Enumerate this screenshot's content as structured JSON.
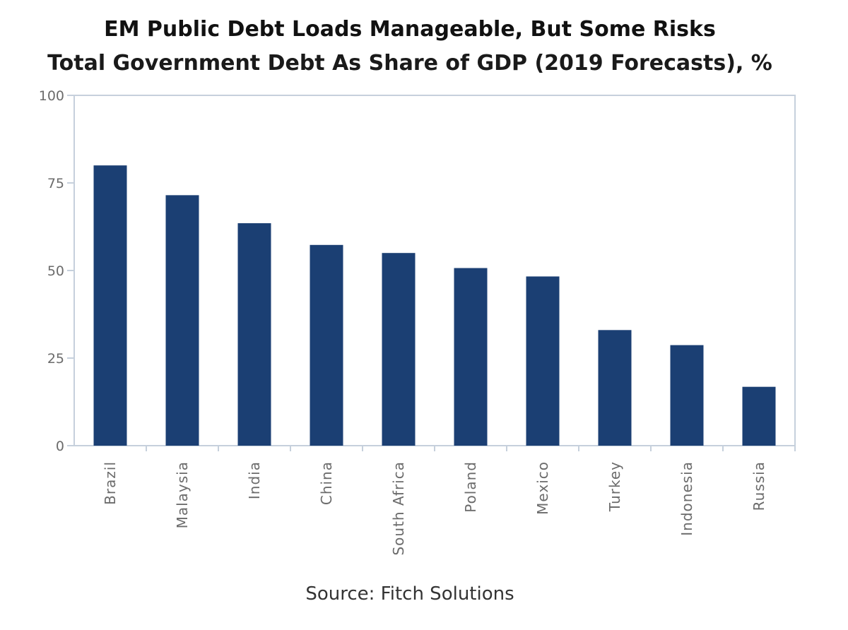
{
  "chart_data": {
    "type": "bar",
    "title": "EM Public Debt Loads Manageable, But Some Risks",
    "subtitle": "Total Government Debt As Share of GDP (2019 Forecasts), %",
    "source": "Source: Fitch Solutions",
    "xlabel": "",
    "ylabel": "",
    "categories": [
      "Brazil",
      "Malaysia",
      "India",
      "China",
      "South Africa",
      "Poland",
      "Mexico",
      "Turkey",
      "Indonesia",
      "Russia"
    ],
    "values": [
      80.0,
      71.5,
      63.5,
      57.3,
      55.0,
      50.7,
      48.3,
      33.0,
      28.7,
      16.8
    ],
    "ylim": [
      0,
      100
    ],
    "yticks": [
      "0",
      "25",
      "50",
      "75",
      "100"
    ],
    "grid": false,
    "legend": "none",
    "bar_color": "#1b3f73",
    "axis_color": "#c6d0dc"
  }
}
